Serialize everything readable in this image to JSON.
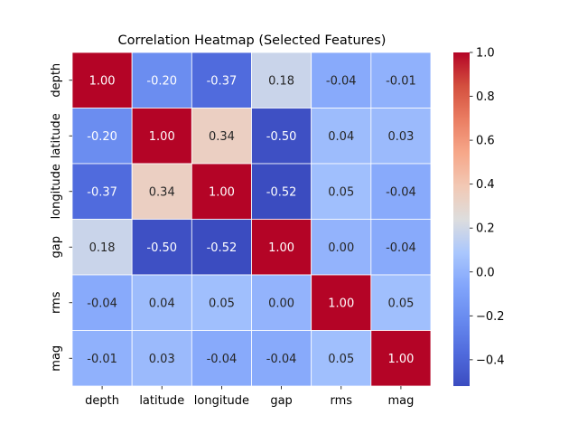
{
  "chart_data": {
    "type": "heatmap",
    "title": "Correlation Heatmap (Selected Features)",
    "x_labels": [
      "depth",
      "latitude",
      "longitude",
      "gap",
      "rms",
      "mag"
    ],
    "y_labels": [
      "depth",
      "latitude",
      "longitude",
      "gap",
      "rms",
      "mag"
    ],
    "values": [
      [
        1.0,
        -0.2,
        -0.37,
        0.18,
        -0.04,
        -0.01
      ],
      [
        -0.2,
        1.0,
        0.34,
        -0.5,
        0.04,
        0.03
      ],
      [
        -0.37,
        0.34,
        1.0,
        -0.52,
        0.05,
        -0.04
      ],
      [
        0.18,
        -0.5,
        -0.52,
        1.0,
        0.0,
        -0.04
      ],
      [
        -0.04,
        0.04,
        0.05,
        0.0,
        1.0,
        0.05
      ],
      [
        -0.01,
        0.03,
        -0.04,
        -0.04,
        0.05,
        1.0
      ]
    ],
    "cell_labels": [
      [
        "1.00",
        "-0.20",
        "-0.37",
        "0.18",
        "-0.04",
        "-0.01"
      ],
      [
        "-0.20",
        "1.00",
        "0.34",
        "-0.50",
        "0.04",
        "0.03"
      ],
      [
        "-0.37",
        "0.34",
        "1.00",
        "-0.52",
        "0.05",
        "-0.04"
      ],
      [
        "0.18",
        "-0.50",
        "-0.52",
        "1.00",
        "0.00",
        "-0.04"
      ],
      [
        "-0.04",
        "0.04",
        "0.05",
        "0.00",
        "1.00",
        "0.05"
      ],
      [
        "-0.01",
        "0.03",
        "-0.04",
        "-0.04",
        "0.05",
        "1.00"
      ]
    ],
    "colormap": "coolwarm",
    "color_range": [
      -0.52,
      1.0
    ],
    "colorbar_ticks": [
      1.0,
      0.8,
      0.6,
      0.4,
      0.2,
      0.0,
      -0.2,
      -0.4
    ],
    "colorbar_tick_labels": [
      "1.0",
      "0.8",
      "0.6",
      "0.4",
      "0.2",
      "0.0",
      "−0.2",
      "−0.4"
    ],
    "cell_border_color": "#ffffff",
    "annotate": true
  }
}
